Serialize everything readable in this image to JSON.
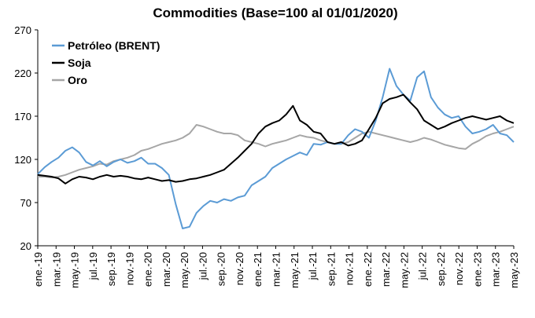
{
  "chart_data": {
    "type": "line",
    "title": "Commodities (Base=100 al 01/01/2020)",
    "ylim": [
      20,
      270
    ],
    "yticks": [
      20,
      70,
      120,
      170,
      220,
      270
    ],
    "x_tick_labels": [
      "ene.-19",
      "mar.-19",
      "may.-19",
      "jul.-19",
      "sep.-19",
      "nov.-19",
      "ene.-20",
      "mar.-20",
      "may.-20",
      "jul.-20",
      "sep.-20",
      "nov.-20",
      "ene.-21",
      "mar.-21",
      "may.-21",
      "jul.-21",
      "sep.-21",
      "nov.-21",
      "ene.-22",
      "mar.-22",
      "may.-22",
      "jul.-22",
      "sep.-22",
      "nov.-22",
      "ene.-23",
      "mar.-23",
      "may.-23"
    ],
    "legend_position": "top-left",
    "grid": false,
    "series": [
      {
        "name": "Petróleo (BRENT)",
        "color": "#5b9bd5",
        "values": [
          103,
          111,
          117,
          122,
          130,
          134,
          128,
          117,
          113,
          118,
          112,
          117,
          120,
          116,
          118,
          122,
          115,
          115,
          110,
          102,
          68,
          40,
          42,
          58,
          66,
          72,
          70,
          74,
          72,
          76,
          78,
          90,
          95,
          100,
          110,
          115,
          120,
          124,
          128,
          125,
          138,
          137,
          140,
          138,
          138,
          148,
          155,
          152,
          145,
          165,
          192,
          225,
          205,
          195,
          188,
          215,
          222,
          192,
          180,
          172,
          168,
          170,
          158,
          150,
          152,
          155,
          160,
          150,
          148,
          140
        ]
      },
      {
        "name": "Soja",
        "color": "#000000",
        "values": [
          102,
          101,
          100,
          98,
          92,
          97,
          100,
          99,
          97,
          100,
          102,
          100,
          101,
          100,
          98,
          97,
          99,
          97,
          95,
          96,
          94,
          95,
          97,
          98,
          100,
          102,
          105,
          108,
          115,
          122,
          130,
          138,
          150,
          158,
          162,
          165,
          172,
          182,
          165,
          160,
          152,
          150,
          140,
          138,
          140,
          136,
          138,
          142,
          155,
          168,
          185,
          190,
          192,
          195,
          186,
          178,
          165,
          160,
          155,
          158,
          162,
          165,
          168,
          170,
          168,
          166,
          168,
          170,
          165,
          162
        ]
      },
      {
        "name": "Oro",
        "color": "#a6a6a6",
        "values": [
          100,
          100,
          99,
          100,
          102,
          105,
          108,
          110,
          112,
          115,
          114,
          118,
          120,
          122,
          125,
          130,
          132,
          135,
          138,
          140,
          142,
          145,
          150,
          160,
          158,
          155,
          152,
          150,
          150,
          148,
          142,
          140,
          138,
          135,
          138,
          140,
          142,
          145,
          148,
          146,
          145,
          142,
          140,
          138,
          138,
          140,
          145,
          150,
          152,
          150,
          148,
          146,
          144,
          142,
          140,
          142,
          145,
          143,
          140,
          137,
          135,
          133,
          132,
          138,
          142,
          147,
          150,
          152,
          155,
          158
        ]
      }
    ]
  }
}
